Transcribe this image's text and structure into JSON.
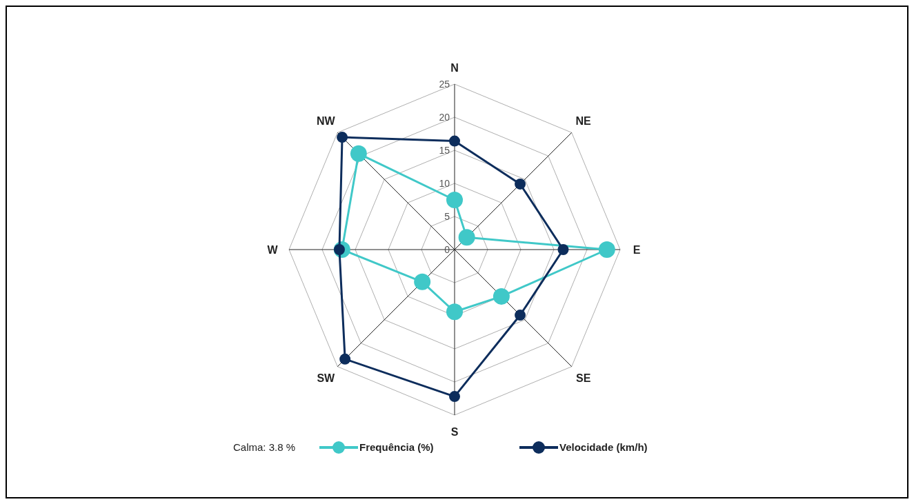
{
  "chart_data": {
    "type": "radar",
    "categories": [
      "N",
      "NE",
      "E",
      "SE",
      "S",
      "SW",
      "W",
      "NW"
    ],
    "series": [
      {
        "name": "Frequência (%)",
        "color": "#40c8c8",
        "values": [
          7.5,
          2.6,
          23,
          10,
          9.4,
          6.9,
          17,
          20.5
        ]
      },
      {
        "name": "Velocidade (km/h)",
        "color": "#0d2d5c",
        "values": [
          16.4,
          14,
          16.4,
          14,
          22.2,
          23.4,
          17.4,
          24
        ]
      }
    ],
    "ylim": [
      0,
      25
    ],
    "yticks": [
      0,
      5,
      10,
      15,
      20,
      25
    ],
    "grid": true,
    "legend": "bottom",
    "marker": "circle",
    "line_style": "solid",
    "annotations": [
      "Calma: 3.8 %"
    ]
  }
}
